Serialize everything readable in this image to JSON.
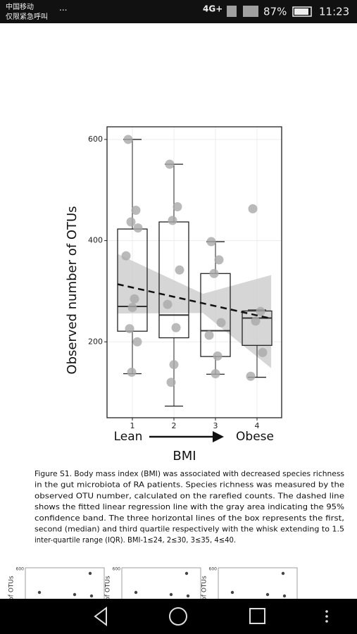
{
  "status_bar": {
    "carrier": "中国移动",
    "status": "仅限紧急呼叫",
    "menu": "···",
    "network": "4G+",
    "battery": "87%",
    "time": "11:23"
  },
  "chart_data": {
    "type": "box",
    "y_label": "Observed number of OTUs",
    "x_label": "BMI",
    "categories": [
      "1",
      "2",
      "3",
      "4"
    ],
    "x_start_label": "Lean",
    "x_end_label": "Obese",
    "ylim": [
      50,
      625
    ],
    "yticks": [
      200,
      400,
      600
    ],
    "grid": true,
    "boxes": [
      {
        "low": 137,
        "q1": 221,
        "median": 270,
        "q3": 423,
        "high": 600
      },
      {
        "low": 73,
        "q1": 208,
        "median": 253,
        "q3": 437,
        "high": 551
      },
      {
        "low": 136,
        "q1": 171,
        "median": 222,
        "q3": 335,
        "high": 398
      },
      {
        "low": 130,
        "q1": 193,
        "median": 247,
        "q3": 261,
        "high": 263
      }
    ],
    "points": [
      [
        600,
        460,
        437,
        425,
        370,
        285,
        268,
        226,
        200,
        140
      ],
      [
        551,
        467,
        440,
        342,
        274,
        228,
        155,
        120
      ],
      [
        398,
        362,
        335,
        238,
        213,
        172,
        137
      ],
      [
        463,
        260,
        241,
        179,
        132
      ]
    ],
    "point_color": "#a9a9a9",
    "trend": {
      "x": [
        0.64,
        4.34
      ],
      "values": [
        314,
        246
      ]
    },
    "band": {
      "x": [
        0.64,
        2.7,
        4.34
      ],
      "upper": [
        374,
        295,
        332
      ],
      "lower": [
        256,
        257,
        148
      ],
      "color": "#cfcfcf"
    }
  },
  "caption": [
    "Figure S1. Body mass index (BMI) was associated with decreased species richness",
    "in the gut microbiota of RA patients. Species richness was measured by the",
    "observed OTU number, calculated on the rarefied counts. The dashed line",
    "shows the fitted linear regression line with the gray area indicating the 95%",
    "confidence band. The three horizontal lines of the box represents the first,",
    "second (median) and third quartile respectively with the whisk extending to 1.5",
    "inter-quartile range (IQR). BMI-1≤24, 2≤30, 3≤35, 4≤40."
  ],
  "thumbnails": [
    {
      "tick": "600",
      "y_label": "of OTUs"
    },
    {
      "tick": "600",
      "y_label": "of OTUs"
    },
    {
      "tick": "600",
      "y_label": "of OTUs"
    }
  ]
}
